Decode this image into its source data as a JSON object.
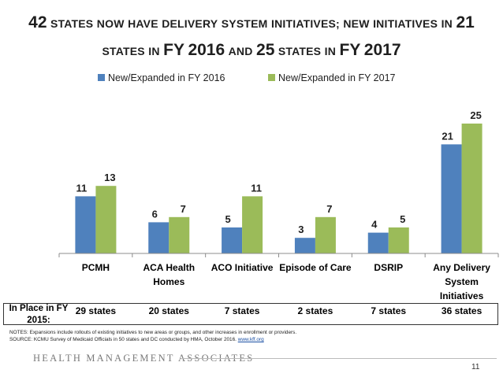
{
  "title": {
    "line1": "42 STATES NOW HAVE DELIVERY SYSTEM INITIATIVES; NEW INITIATIVES IN 21",
    "line2": "STATES IN FY 2016 AND 25 STATES IN FY 2017"
  },
  "chart_data": {
    "type": "bar",
    "categories": [
      "PCMH",
      "ACA Health Homes",
      "ACO Initiative",
      "Episode of Care",
      "DSRIP",
      "Any Delivery System Initiatives"
    ],
    "category_lines": [
      [
        "PCMH"
      ],
      [
        "ACA Health",
        "Homes"
      ],
      [
        "ACO Initiative"
      ],
      [
        "Episode of Care"
      ],
      [
        "DSRIP"
      ],
      [
        "Any Delivery",
        "System",
        "Initiatives"
      ]
    ],
    "series": [
      {
        "name": "New/Expanded in FY 2016",
        "values": [
          11,
          6,
          5,
          3,
          4,
          21
        ],
        "color": "#4f81bd"
      },
      {
        "name": "New/Expanded in FY 2017",
        "values": [
          13,
          7,
          11,
          7,
          5,
          25
        ],
        "color": "#9bbb59"
      }
    ],
    "ylim": [
      0,
      27
    ],
    "legend": "top-center",
    "grid": false
  },
  "in_place": {
    "label": "In Place in FY 2015:",
    "values": [
      "29 states",
      "20 states",
      "7 states",
      "2 states",
      "7 states",
      "36 states"
    ]
  },
  "notes": {
    "line1": "NOTES: Expansions include rollouts of existing initiatives to new areas or groups, and other increases in enrollment or providers.",
    "line2": "SOURCE: KCMU Survey of Medicaid Officials in 50 states and DC conducted by HMA, October 2016.",
    "link": "www.kff.org"
  },
  "footer": {
    "logo": "Health Management Associates",
    "page": "11"
  }
}
